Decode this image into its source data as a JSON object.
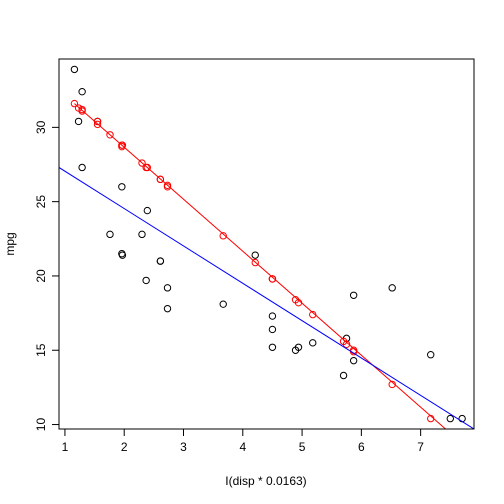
{
  "chart_data": {
    "type": "scatter",
    "title": "",
    "xlabel": "I(disp * 0.0163)",
    "ylabel": "mpg",
    "xlim": [
      0.9,
      7.9
    ],
    "ylim": [
      9.7,
      34.6
    ],
    "xticks": [
      1,
      2,
      3,
      4,
      5,
      6,
      7
    ],
    "yticks": [
      10,
      15,
      20,
      25,
      30
    ],
    "grid": false,
    "legend": "none",
    "series": [
      {
        "kind": "points",
        "marker": "open-circle",
        "color": "#000000",
        "points": [
          [
            2.61,
            21.0
          ],
          [
            2.61,
            21.0
          ],
          [
            1.76,
            22.8
          ],
          [
            4.21,
            21.4
          ],
          [
            5.87,
            18.7
          ],
          [
            3.67,
            18.1
          ],
          [
            5.87,
            14.3
          ],
          [
            2.39,
            24.4
          ],
          [
            2.3,
            22.8
          ],
          [
            2.73,
            19.2
          ],
          [
            2.73,
            17.8
          ],
          [
            4.5,
            16.4
          ],
          [
            4.5,
            17.3
          ],
          [
            4.5,
            15.2
          ],
          [
            7.7,
            10.4
          ],
          [
            7.5,
            10.4
          ],
          [
            7.17,
            14.7
          ],
          [
            1.29,
            32.4
          ],
          [
            1.23,
            30.4
          ],
          [
            1.16,
            33.9
          ],
          [
            1.96,
            21.5
          ],
          [
            5.18,
            15.5
          ],
          [
            4.94,
            15.2
          ],
          [
            5.7,
            13.3
          ],
          [
            6.52,
            19.2
          ],
          [
            1.29,
            27.3
          ],
          [
            1.96,
            26.0
          ],
          [
            1.55,
            30.4
          ],
          [
            5.75,
            15.8
          ],
          [
            2.37,
            19.7
          ],
          [
            4.89,
            15.0
          ],
          [
            1.97,
            21.4
          ]
        ]
      },
      {
        "kind": "points",
        "marker": "open-circle",
        "color": "#ff0000",
        "points": [
          [
            1.16,
            31.6
          ],
          [
            1.23,
            31.3
          ],
          [
            1.29,
            31.2
          ],
          [
            1.29,
            31.1
          ],
          [
            1.55,
            30.4
          ],
          [
            1.55,
            30.2
          ],
          [
            1.76,
            29.5
          ],
          [
            1.96,
            28.8
          ],
          [
            1.97,
            28.8
          ],
          [
            1.96,
            28.7
          ],
          [
            2.3,
            27.6
          ],
          [
            2.37,
            27.3
          ],
          [
            2.39,
            27.3
          ],
          [
            2.61,
            26.5
          ],
          [
            2.61,
            26.5
          ],
          [
            2.73,
            26.1
          ],
          [
            2.73,
            26.0
          ],
          [
            3.67,
            22.7
          ],
          [
            4.21,
            20.9
          ],
          [
            4.5,
            19.8
          ],
          [
            4.5,
            19.8
          ],
          [
            4.5,
            19.8
          ],
          [
            4.89,
            18.4
          ],
          [
            4.94,
            18.2
          ],
          [
            5.18,
            17.4
          ],
          [
            5.7,
            15.6
          ],
          [
            5.75,
            15.4
          ],
          [
            5.87,
            15.0
          ],
          [
            5.87,
            14.9
          ],
          [
            6.52,
            12.7
          ],
          [
            7.17,
            10.4
          ]
        ]
      },
      {
        "kind": "line",
        "color": "#ff0000",
        "points": [
          [
            1.16,
            31.6
          ],
          [
            7.42,
            9.7
          ]
        ]
      },
      {
        "kind": "line",
        "color": "#0000ff",
        "points": [
          [
            0.9,
            27.3
          ],
          [
            7.9,
            9.7
          ]
        ]
      }
    ]
  }
}
